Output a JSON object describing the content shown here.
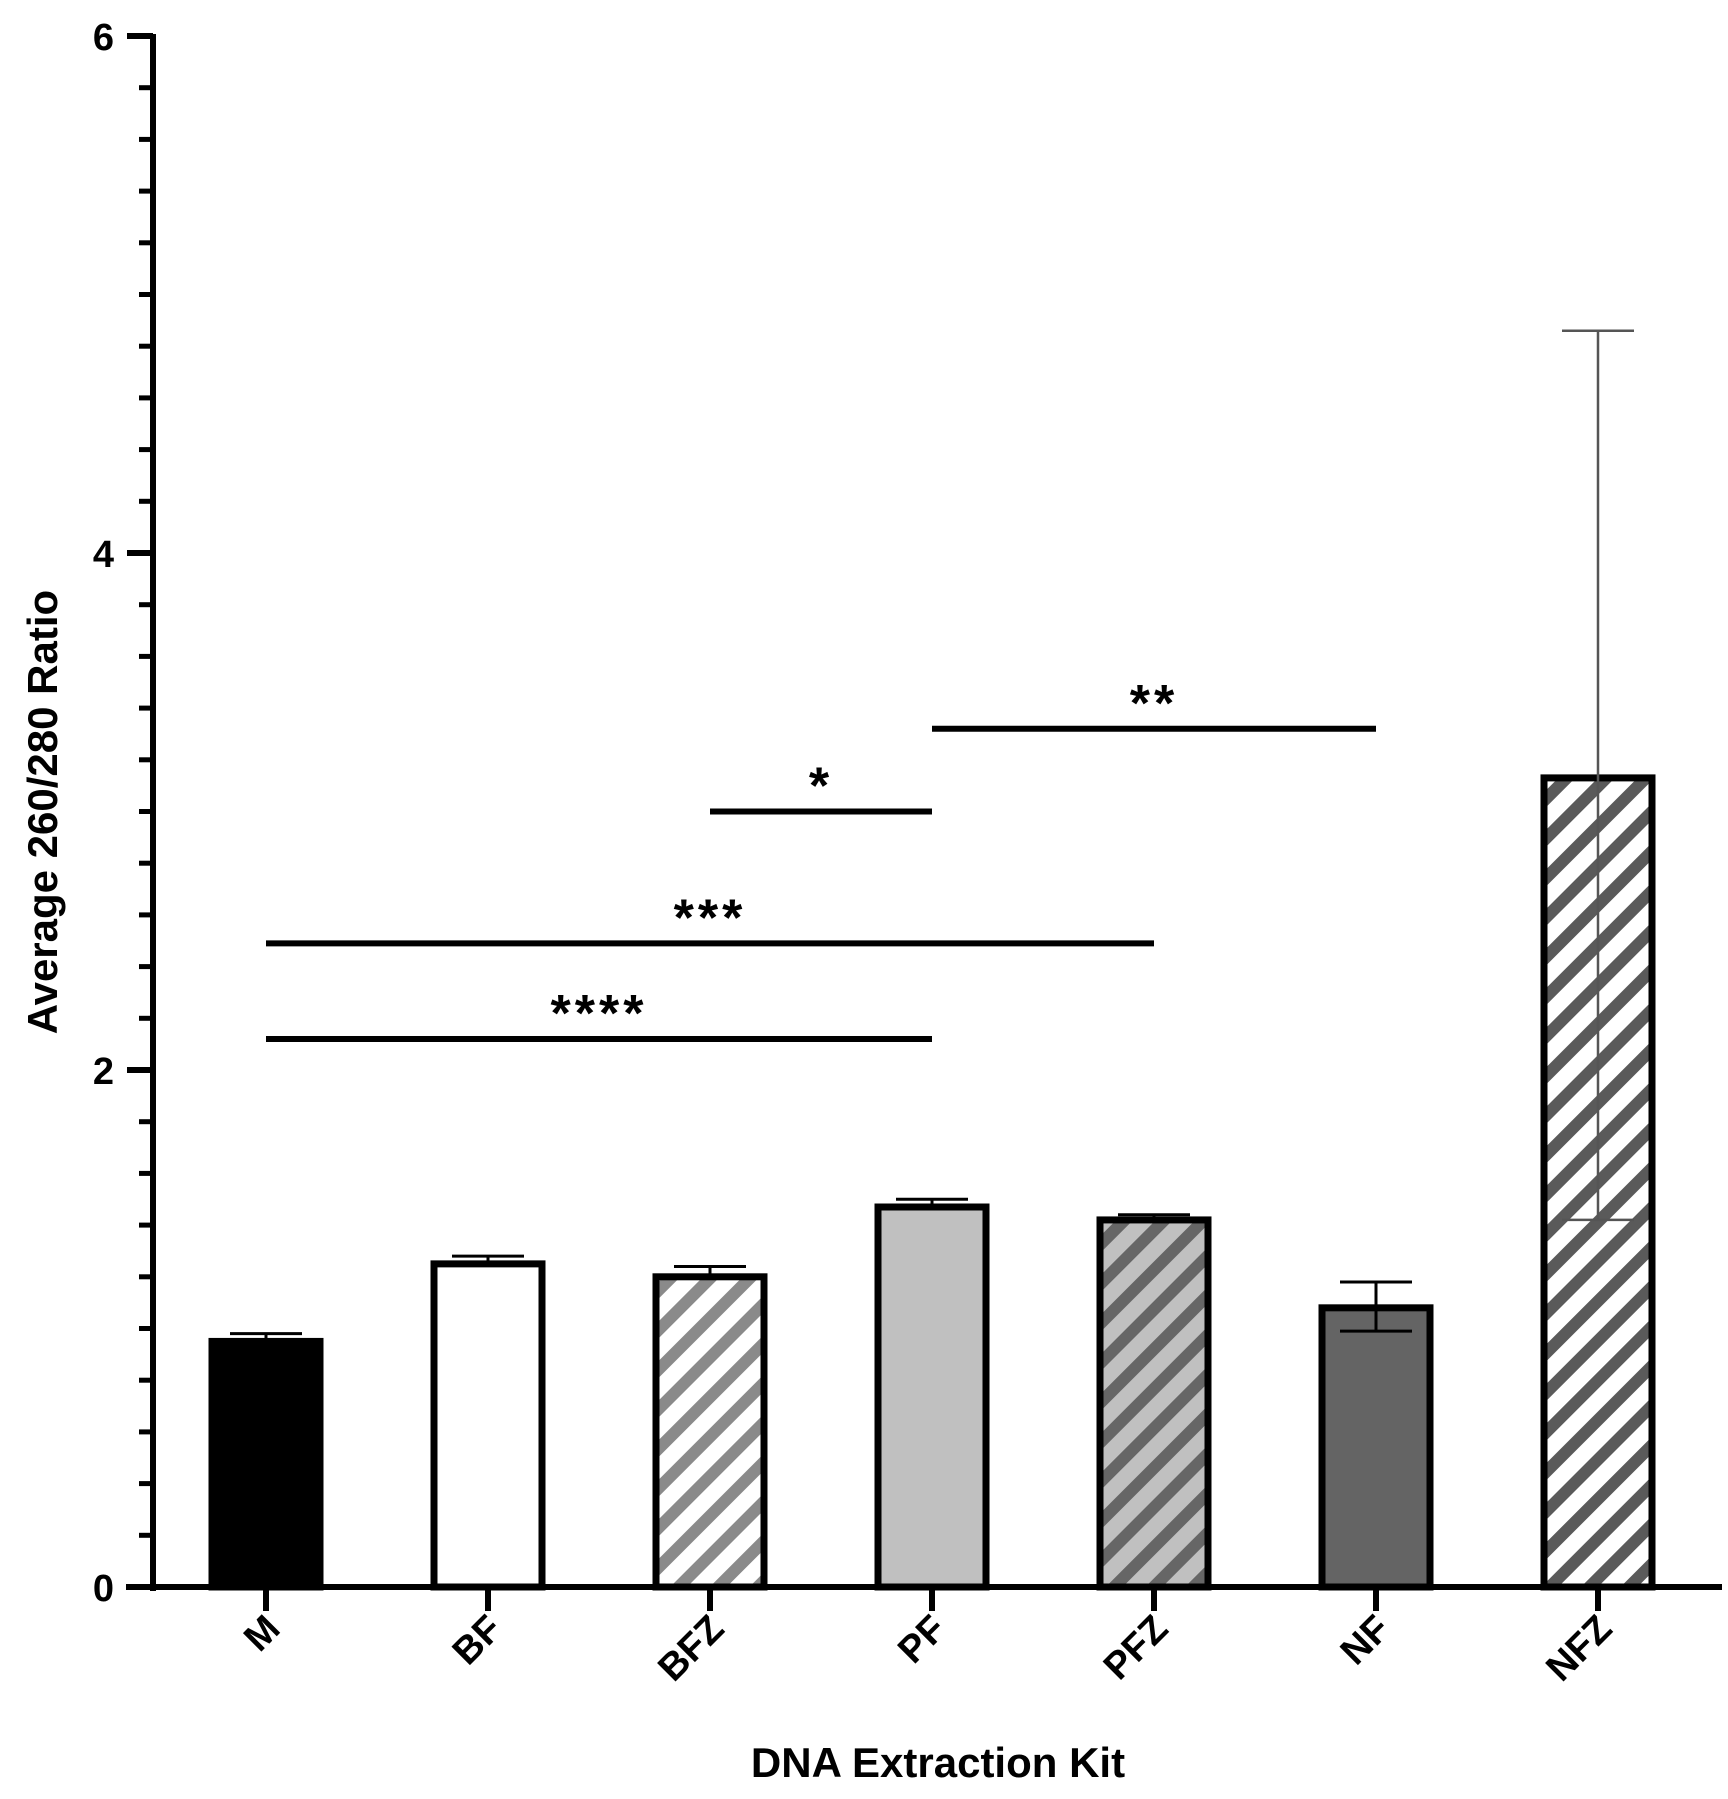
{
  "chart_data": {
    "type": "bar",
    "title": "",
    "xlabel": "DNA Extraction Kit",
    "ylabel": "Average 260/280 Ratio",
    "ylim": [
      0,
      6
    ],
    "yticks": [
      0,
      2,
      4,
      6
    ],
    "minor_tick_step": 0.2,
    "grid": false,
    "legend": "none",
    "categories": [
      "M",
      "BF",
      "BFZ",
      "PF",
      "PFZ",
      "NF",
      "NFZ"
    ],
    "values": [
      0.95,
      1.25,
      1.2,
      1.47,
      1.42,
      1.08,
      3.13
    ],
    "error_upper": [
      0.98,
      1.28,
      1.24,
      1.5,
      1.44,
      1.18,
      4.86
    ],
    "error_lower": [
      null,
      null,
      null,
      null,
      null,
      0.99,
      1.42
    ],
    "fills": [
      {
        "base": "#000000",
        "hatch": null
      },
      {
        "base": "#ffffff",
        "hatch": null
      },
      {
        "base": "#ffffff",
        "hatch": "#8a8a8a"
      },
      {
        "base": "#c0c0c0",
        "hatch": null
      },
      {
        "base": "#c0c0c0",
        "hatch": "#666666"
      },
      {
        "base": "#646464",
        "hatch": null
      },
      {
        "base": "#ffffff",
        "hatch": "#5a5a5a"
      }
    ],
    "error_bar_colors": [
      "#000000",
      "#000000",
      "#000000",
      "#000000",
      "#000000",
      "#000000",
      "#555555"
    ],
    "significance": [
      {
        "from": "M",
        "to": "PF",
        "y": 2.12,
        "label": "****"
      },
      {
        "from": "M",
        "to": "PFZ",
        "y": 2.49,
        "label": "***"
      },
      {
        "from": "BFZ",
        "to": "PF",
        "y": 3.0,
        "label": "*"
      },
      {
        "from": "PF",
        "to": "NF",
        "y": 3.32,
        "label": "**"
      }
    ]
  }
}
